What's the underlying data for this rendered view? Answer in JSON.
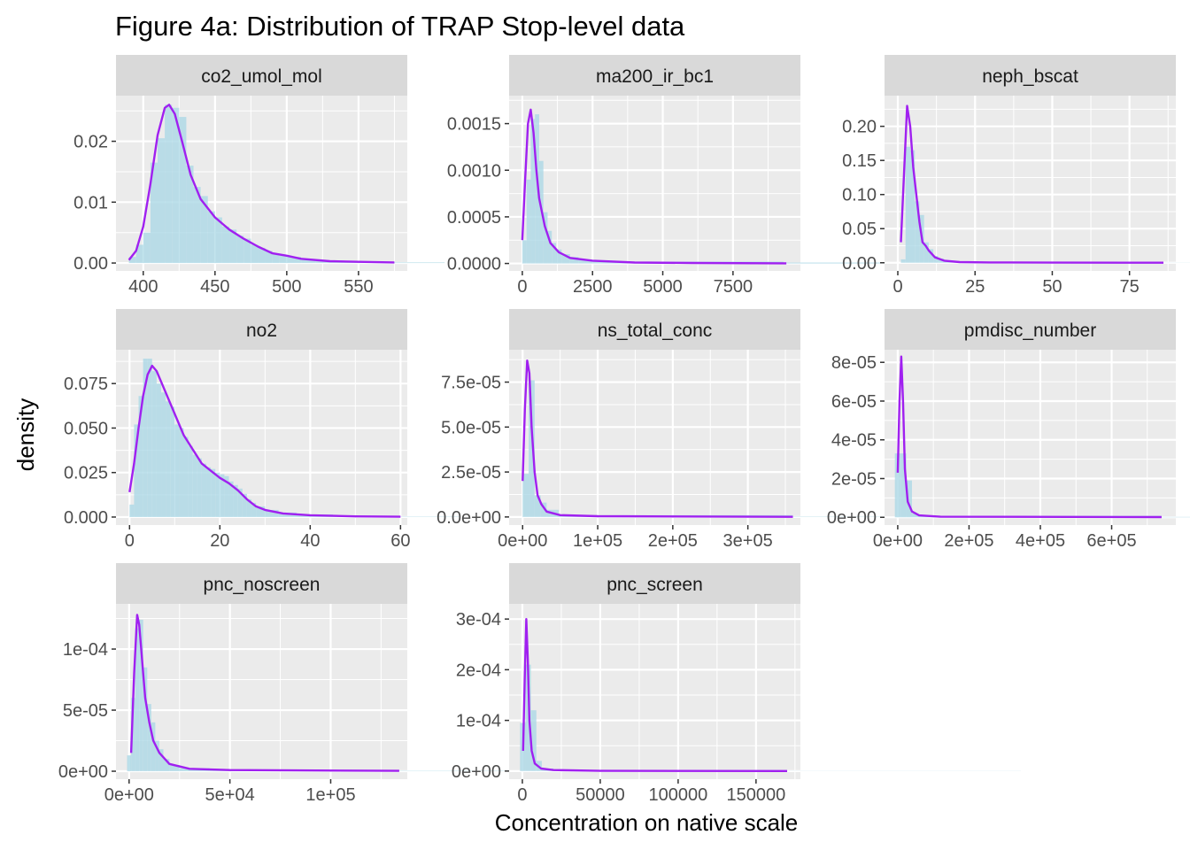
{
  "title": "Figure 4a: Distribution of TRAP Stop-level data",
  "xlabel": "Concentration on native scale",
  "ylabel": "density",
  "colors": {
    "panel_bg": "#EBEBEB",
    "strip_bg": "#D9D9D9",
    "grid": "#FFFFFF",
    "hist_fill": "#ADD8E6",
    "density_line": "#A020F0",
    "axis_text": "#4D4D4D",
    "strip_text": "#1A1A1A"
  },
  "chart_data": [
    {
      "type": "area",
      "panel": "co2_umol_mol",
      "xlim": [
        381,
        584
      ],
      "ylim": [
        -0.0013,
        0.0275
      ],
      "xticks": [
        400,
        450,
        500,
        550
      ],
      "xtick_labels": [
        "400",
        "450",
        "500",
        "550"
      ],
      "yticks": [
        0,
        0.01,
        0.02
      ],
      "ytick_labels": [
        "0.00",
        "0.01",
        "0.02"
      ],
      "density": [
        [
          390,
          0.0005
        ],
        [
          395,
          0.002
        ],
        [
          400,
          0.006
        ],
        [
          405,
          0.013
        ],
        [
          410,
          0.021
        ],
        [
          415,
          0.0255
        ],
        [
          418,
          0.026
        ],
        [
          422,
          0.0245
        ],
        [
          427,
          0.02
        ],
        [
          433,
          0.0145
        ],
        [
          440,
          0.0105
        ],
        [
          450,
          0.0075
        ],
        [
          460,
          0.0055
        ],
        [
          470,
          0.004
        ],
        [
          480,
          0.0027
        ],
        [
          490,
          0.0016
        ],
        [
          500,
          0.0012
        ],
        [
          510,
          0.0007
        ],
        [
          530,
          0.0003
        ],
        [
          550,
          0.0002
        ],
        [
          575,
          0.0001
        ]
      ],
      "bars": [
        [
          390,
          0.001
        ],
        [
          395,
          0.003
        ],
        [
          400,
          0.005
        ],
        [
          405,
          0.0165
        ],
        [
          410,
          0.0205
        ],
        [
          415,
          0.026
        ],
        [
          420,
          0.0255
        ],
        [
          425,
          0.024
        ],
        [
          430,
          0.016
        ],
        [
          435,
          0.0125
        ],
        [
          440,
          0.011
        ],
        [
          445,
          0.0085
        ],
        [
          450,
          0.0075
        ],
        [
          455,
          0.006
        ],
        [
          460,
          0.0055
        ],
        [
          465,
          0.0045
        ],
        [
          470,
          0.004
        ],
        [
          475,
          0.003
        ],
        [
          480,
          0.0025
        ],
        [
          485,
          0.002
        ],
        [
          490,
          0.0015
        ],
        [
          495,
          0.0012
        ],
        [
          500,
          0.001
        ],
        [
          510,
          0.0006
        ],
        [
          520,
          0.0004
        ],
        [
          540,
          0.0002
        ],
        [
          575,
          0.0001
        ]
      ]
    },
    {
      "type": "area",
      "panel": "ma200_ir_bc1",
      "xlim": [
        -470,
        9900
      ],
      "ylim": [
        -8e-05,
        0.0018
      ],
      "xticks": [
        0,
        2500,
        5000,
        7500
      ],
      "xtick_labels": [
        "0",
        "2500",
        "5000",
        "7500"
      ],
      "yticks": [
        0,
        0.0005,
        0.001,
        0.0015
      ],
      "ytick_labels": [
        "0.0000",
        "0.0005",
        "0.0010",
        "0.0015"
      ],
      "density": [
        [
          0,
          0.00025
        ],
        [
          100,
          0.0009
        ],
        [
          200,
          0.0015
        ],
        [
          300,
          0.00165
        ],
        [
          400,
          0.0014
        ],
        [
          500,
          0.001
        ],
        [
          600,
          0.0007
        ],
        [
          800,
          0.0004
        ],
        [
          1000,
          0.00022
        ],
        [
          1300,
          0.00012
        ],
        [
          1700,
          6e-05
        ],
        [
          2500,
          3e-05
        ],
        [
          4000,
          1e-05
        ],
        [
          6000,
          5e-06
        ],
        [
          9400,
          2e-06
        ]
      ],
      "bars": [
        [
          0,
          0.00025
        ],
        [
          150,
          0.0009
        ],
        [
          300,
          0.00155
        ],
        [
          450,
          0.0016
        ],
        [
          600,
          0.0011
        ],
        [
          750,
          0.00055
        ],
        [
          900,
          0.00035
        ],
        [
          1050,
          0.00022
        ],
        [
          1200,
          0.00015
        ],
        [
          1400,
          0.0001
        ],
        [
          1700,
          7e-05
        ],
        [
          2000,
          4e-05
        ],
        [
          2500,
          2e-05
        ],
        [
          9300,
          1e-05
        ]
      ]
    },
    {
      "type": "area",
      "panel": "neph_bscat",
      "xlim": [
        -4.3,
        90
      ],
      "ylim": [
        -0.012,
        0.245
      ],
      "xticks": [
        0,
        25,
        50,
        75
      ],
      "xtick_labels": [
        "0",
        "25",
        "50",
        "75"
      ],
      "yticks": [
        0,
        0.05,
        0.1,
        0.15,
        0.2
      ],
      "ytick_labels": [
        "0.00",
        "0.05",
        "0.10",
        "0.15",
        "0.20"
      ],
      "density": [
        [
          1,
          0.03
        ],
        [
          2,
          0.13
        ],
        [
          3,
          0.23
        ],
        [
          4,
          0.2
        ],
        [
          5,
          0.14
        ],
        [
          6,
          0.1
        ],
        [
          7,
          0.06
        ],
        [
          8,
          0.03
        ],
        [
          9,
          0.025
        ],
        [
          10,
          0.018
        ],
        [
          12,
          0.008
        ],
        [
          15,
          0.003
        ],
        [
          20,
          0.001
        ],
        [
          30,
          0.0005
        ],
        [
          50,
          0.0002
        ],
        [
          86,
          0.0001
        ]
      ],
      "bars": [
        [
          1,
          0.005
        ],
        [
          2.5,
          0.17
        ],
        [
          4,
          0.165
        ],
        [
          5.5,
          0.09
        ],
        [
          7,
          0.07
        ],
        [
          8.5,
          0.03
        ],
        [
          10,
          0.02
        ],
        [
          11.5,
          0.01
        ],
        [
          13,
          0.006
        ],
        [
          15,
          0.003
        ],
        [
          18,
          0.0015
        ],
        [
          25,
          0.0005
        ],
        [
          86,
          0.0002
        ]
      ]
    },
    {
      "type": "area",
      "panel": "no2",
      "xlim": [
        -3,
        61.5
      ],
      "ylim": [
        -0.0045,
        0.094
      ],
      "xticks": [
        0,
        20,
        40,
        60
      ],
      "xtick_labels": [
        "0",
        "20",
        "40",
        "60"
      ],
      "yticks": [
        0,
        0.025,
        0.05,
        0.075
      ],
      "ytick_labels": [
        "0.000",
        "0.025",
        "0.050",
        "0.075"
      ],
      "density": [
        [
          0,
          0.014
        ],
        [
          1,
          0.03
        ],
        [
          2,
          0.05
        ],
        [
          3,
          0.068
        ],
        [
          4,
          0.08
        ],
        [
          5,
          0.085
        ],
        [
          6,
          0.082
        ],
        [
          7,
          0.076
        ],
        [
          8,
          0.07
        ],
        [
          10,
          0.058
        ],
        [
          12,
          0.046
        ],
        [
          14,
          0.038
        ],
        [
          16,
          0.03
        ],
        [
          18,
          0.026
        ],
        [
          20,
          0.022
        ],
        [
          22,
          0.019
        ],
        [
          24,
          0.015
        ],
        [
          26,
          0.01
        ],
        [
          28,
          0.006
        ],
        [
          30,
          0.004
        ],
        [
          34,
          0.002
        ],
        [
          40,
          0.001
        ],
        [
          50,
          0.0004
        ],
        [
          60,
          0.0002
        ]
      ],
      "bars": [
        [
          0,
          0.007
        ],
        [
          1,
          0.052
        ],
        [
          2,
          0.068
        ],
        [
          3,
          0.089
        ],
        [
          4,
          0.089
        ],
        [
          5,
          0.082
        ],
        [
          6,
          0.075
        ],
        [
          7,
          0.07
        ],
        [
          8,
          0.065
        ],
        [
          9,
          0.062
        ],
        [
          10,
          0.052
        ],
        [
          11,
          0.05
        ],
        [
          12,
          0.045
        ],
        [
          13,
          0.04
        ],
        [
          14,
          0.035
        ],
        [
          15,
          0.033
        ],
        [
          16,
          0.03
        ],
        [
          17,
          0.028
        ],
        [
          18,
          0.027
        ],
        [
          19,
          0.025
        ],
        [
          20,
          0.024
        ],
        [
          21,
          0.023
        ],
        [
          22,
          0.02
        ],
        [
          23,
          0.018
        ],
        [
          24,
          0.016
        ],
        [
          25,
          0.013
        ],
        [
          26,
          0.01
        ],
        [
          27,
          0.008
        ],
        [
          28,
          0.006
        ],
        [
          30,
          0.004
        ],
        [
          33,
          0.0025
        ],
        [
          37,
          0.0015
        ],
        [
          45,
          0.0007
        ],
        [
          59,
          0.0002
        ]
      ]
    },
    {
      "type": "area",
      "panel": "ns_total_conc",
      "xlim": [
        -18000,
        370000
      ],
      "ylim": [
        -4.5e-06,
        9.3e-05
      ],
      "xticks": [
        0,
        100000,
        200000,
        300000
      ],
      "xtick_labels": [
        "0e+00",
        "1e+05",
        "2e+05",
        "3e+05"
      ],
      "yticks": [
        0,
        2.5e-05,
        5e-05,
        7.5e-05
      ],
      "ytick_labels": [
        "0.0e+00",
        "2.5e-05",
        "5.0e-05",
        "7.5e-05"
      ],
      "density": [
        [
          0,
          2e-05
        ],
        [
          3000,
          6e-05
        ],
        [
          6000,
          8.7e-05
        ],
        [
          9000,
          8e-05
        ],
        [
          12000,
          5e-05
        ],
        [
          16000,
          2.5e-05
        ],
        [
          20000,
          1.2e-05
        ],
        [
          25000,
          7e-06
        ],
        [
          32000,
          3e-06
        ],
        [
          50000,
          1e-06
        ],
        [
          100000,
          4e-07
        ],
        [
          360000,
          1e-07
        ]
      ],
      "bars": [
        [
          0,
          2.4e-05
        ],
        [
          8000,
          7.6e-05
        ],
        [
          16000,
          1.2e-05
        ],
        [
          24000,
          8e-06
        ],
        [
          32000,
          4e-06
        ],
        [
          48000,
          1e-06
        ],
        [
          360000,
          2e-07
        ]
      ]
    },
    {
      "type": "area",
      "panel": "pmdisc_number",
      "xlim": [
        -37000,
        780000
      ],
      "ylim": [
        -4e-06,
        8.65e-05
      ],
      "xticks": [
        0,
        200000,
        400000,
        600000
      ],
      "xtick_labels": [
        "0e+00",
        "2e+05",
        "4e+05",
        "6e+05"
      ],
      "yticks": [
        0,
        2e-05,
        4e-05,
        6e-05,
        8e-05
      ],
      "ytick_labels": [
        "0e+00",
        "2e-05",
        "4e-05",
        "6e-05",
        "8e-05"
      ],
      "density": [
        [
          0,
          2.3e-05
        ],
        [
          5000,
          6e-05
        ],
        [
          10000,
          8.3e-05
        ],
        [
          15000,
          6e-05
        ],
        [
          20000,
          2.5e-05
        ],
        [
          28000,
          8e-06
        ],
        [
          40000,
          3e-06
        ],
        [
          60000,
          1e-06
        ],
        [
          120000,
          3e-07
        ],
        [
          740000,
          1e-07
        ]
      ],
      "bars": [
        [
          -8000,
          3.3e-05
        ],
        [
          8000,
          3.3e-05
        ],
        [
          24000,
          1.9e-05
        ],
        [
          40000,
          2e-06
        ],
        [
          56000,
          8e-07
        ],
        [
          740000,
          2e-07
        ]
      ]
    },
    {
      "type": "area",
      "panel": "pnc_noscreen",
      "xlim": [
        -6500,
        138000
      ],
      "ylim": [
        -6.5e-06,
        0.000137
      ],
      "xticks": [
        0,
        50000,
        100000
      ],
      "xtick_labels": [
        "0e+00",
        "5e+04",
        "1e+05"
      ],
      "yticks": [
        0,
        5e-05,
        0.0001
      ],
      "ytick_labels": [
        "0e+00",
        "5e-05",
        "1e-04"
      ],
      "density": [
        [
          1000,
          1.5e-05
        ],
        [
          2500,
          8e-05
        ],
        [
          4000,
          0.000128
        ],
        [
          5000,
          0.00012
        ],
        [
          6000,
          0.0001
        ],
        [
          7000,
          8e-05
        ],
        [
          8000,
          6e-05
        ],
        [
          10000,
          4e-05
        ],
        [
          12000,
          2.5e-05
        ],
        [
          15000,
          1.5e-05
        ],
        [
          20000,
          6e-06
        ],
        [
          30000,
          2e-06
        ],
        [
          50000,
          1e-06
        ],
        [
          134000,
          3e-07
        ]
      ],
      "bars": [
        [
          -1000,
          1.3e-05
        ],
        [
          1000,
          6e-05
        ],
        [
          3000,
          0.000117
        ],
        [
          5000,
          0.000124
        ],
        [
          7000,
          8.5e-05
        ],
        [
          9000,
          5.5e-05
        ],
        [
          11000,
          4e-05
        ],
        [
          13000,
          2.5e-05
        ],
        [
          15000,
          1.8e-05
        ],
        [
          17000,
          1e-05
        ],
        [
          20000,
          5e-06
        ],
        [
          25000,
          2.5e-06
        ],
        [
          40000,
          1e-06
        ],
        [
          134000,
          3e-07
        ]
      ]
    },
    {
      "type": "area",
      "panel": "pnc_screen",
      "xlim": [
        -8500,
        178500
      ],
      "ylim": [
        -1.6e-05,
        0.00033
      ],
      "xticks": [
        0,
        50000,
        100000,
        150000
      ],
      "xtick_labels": [
        "0",
        "50000",
        "100000",
        "150000"
      ],
      "yticks": [
        0,
        0.0001,
        0.0002,
        0.0003
      ],
      "ytick_labels": [
        "0e+00",
        "1e-04",
        "2e-04",
        "3e-04"
      ],
      "density": [
        [
          500,
          4e-05
        ],
        [
          1500,
          0.00018
        ],
        [
          2500,
          0.0003
        ],
        [
          3500,
          0.00022
        ],
        [
          4500,
          0.0001
        ],
        [
          6000,
          4e-05
        ],
        [
          8000,
          1.5e-05
        ],
        [
          12000,
          5e-06
        ],
        [
          20000,
          2e-06
        ],
        [
          50000,
          5e-07
        ],
        [
          170000,
          1e-07
        ]
      ],
      "bars": [
        [
          -1500,
          9.5e-05
        ],
        [
          2000,
          0.00021
        ],
        [
          5500,
          0.00012
        ],
        [
          9000,
          2e-05
        ],
        [
          12500,
          5e-06
        ],
        [
          20000,
          2e-06
        ],
        [
          170000,
          3e-07
        ]
      ]
    }
  ]
}
